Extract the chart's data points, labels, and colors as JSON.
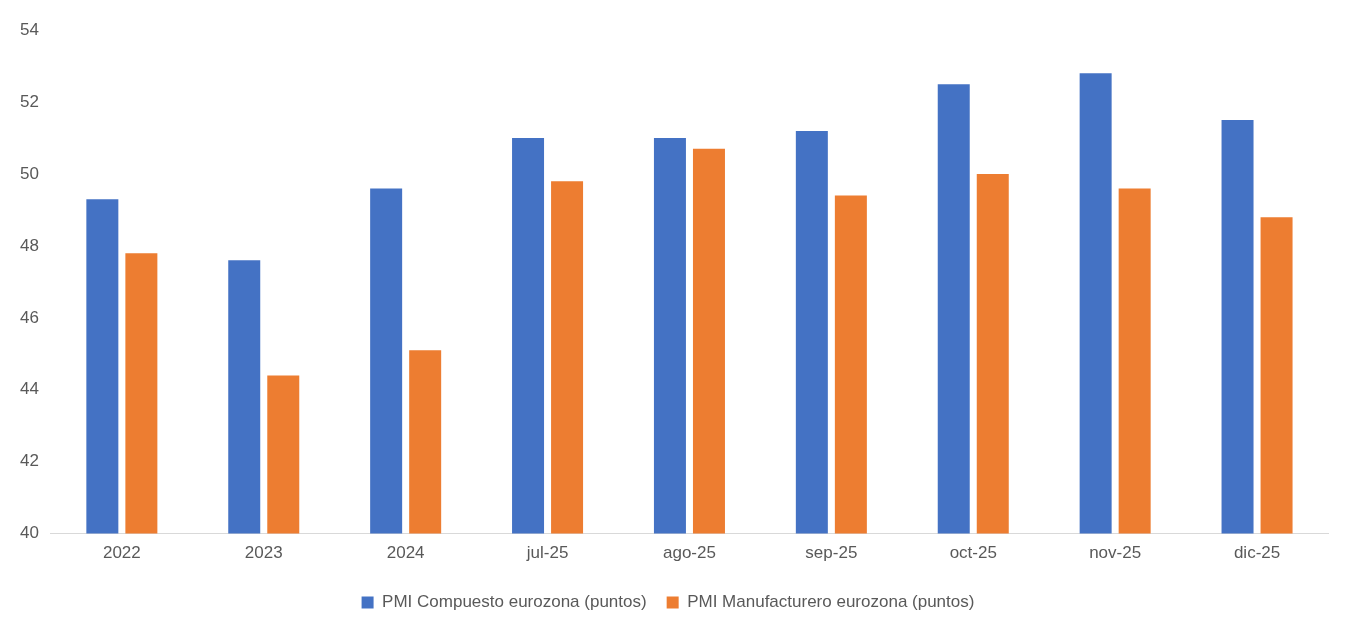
{
  "chart_data": {
    "type": "bar",
    "categories": [
      "2022",
      "2023",
      "2024",
      "jul-25",
      "ago-25",
      "sep-25",
      "oct-25",
      "nov-25",
      "dic-25"
    ],
    "series": [
      {
        "name": "PMI Compuesto eurozona (puntos)",
        "color": "#4472c4",
        "values": [
          49.3,
          47.6,
          49.6,
          51.0,
          51.0,
          51.2,
          52.5,
          52.8,
          51.5
        ]
      },
      {
        "name": "PMI Manufacturero eurozona (puntos)",
        "color": "#ed7d31",
        "values": [
          47.8,
          44.4,
          45.1,
          49.8,
          50.7,
          49.4,
          50.0,
          49.6,
          48.8
        ]
      }
    ],
    "ylim": [
      40,
      54
    ],
    "yticks": [
      40,
      42,
      44,
      46,
      48,
      50,
      52,
      54
    ],
    "grid": false,
    "legend": "bottom"
  }
}
